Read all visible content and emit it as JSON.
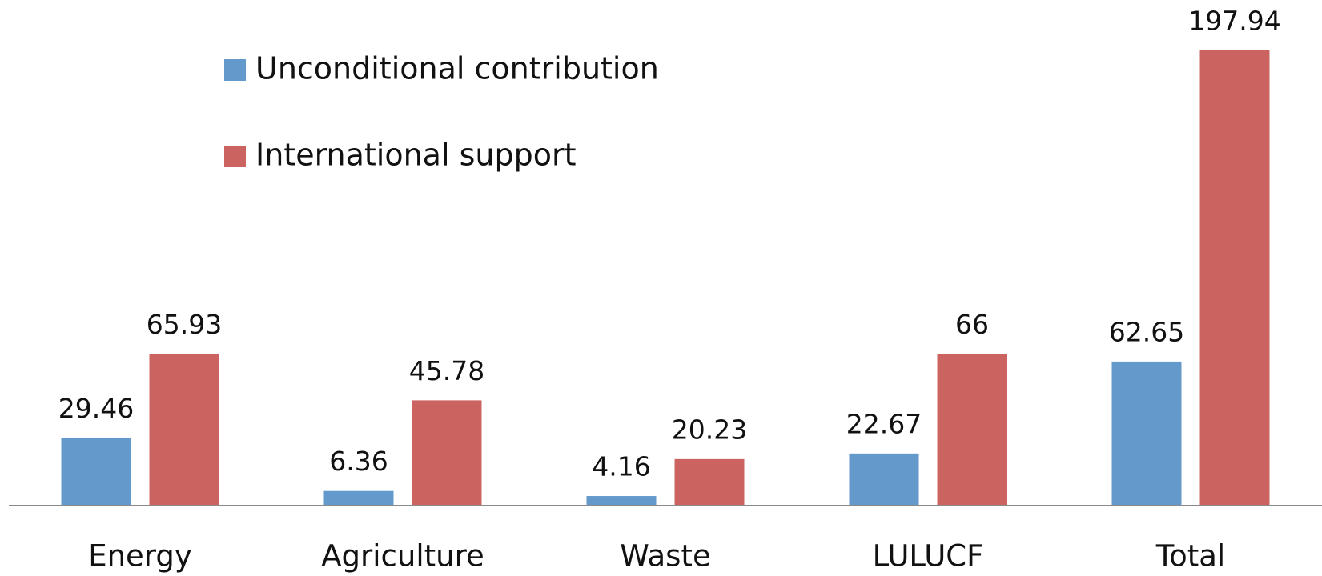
{
  "chart_data": {
    "type": "bar",
    "categories": [
      "Energy",
      "Agriculture",
      "Waste",
      "LULUCF",
      "Total"
    ],
    "series": [
      {
        "name": "Unconditional contribution",
        "color": "#6399cb",
        "values": [
          29.46,
          6.36,
          4.16,
          22.67,
          62.65
        ]
      },
      {
        "name": "International support",
        "color": "#cb6461",
        "values": [
          65.93,
          45.78,
          20.23,
          66,
          197.94
        ]
      }
    ]
  }
}
